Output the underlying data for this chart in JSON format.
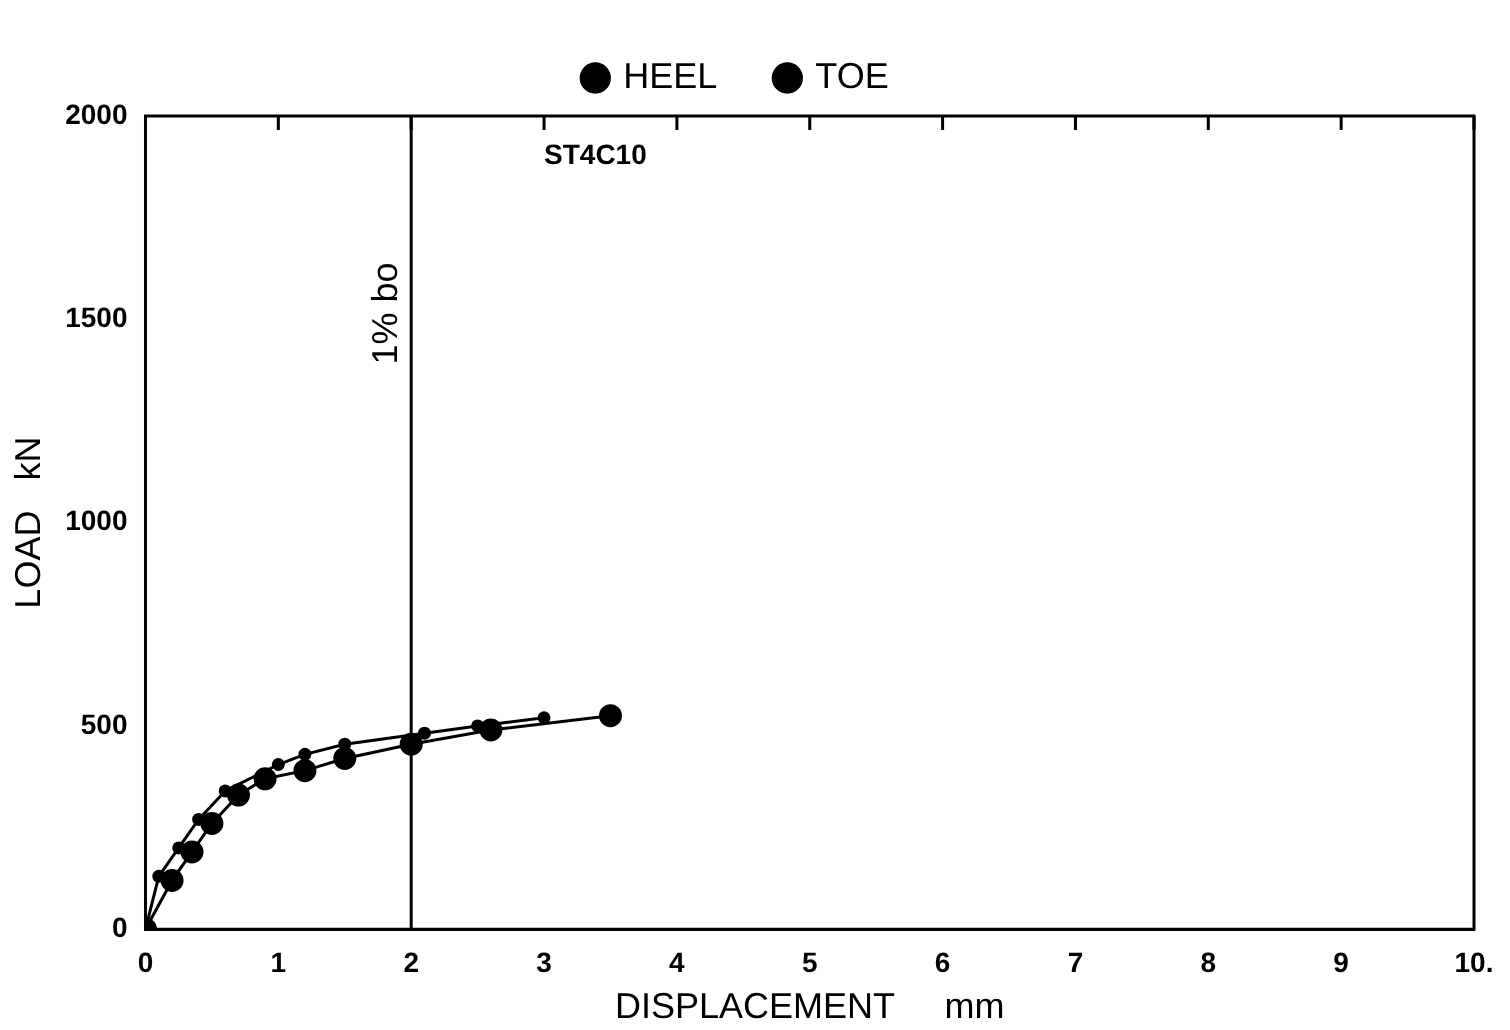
{
  "chart_data": {
    "type": "line",
    "xlabel": "DISPLACEMENT     mm",
    "ylabel": "LOAD   kN",
    "xlim": [
      0,
      10
    ],
    "xticks": [
      0,
      1,
      2,
      3,
      4,
      5,
      6,
      7,
      8,
      9,
      {
        "value": 10,
        "label": "10."
      }
    ],
    "ylim": [
      0,
      2000
    ],
    "yticks": [
      0,
      500,
      1000,
      1500,
      2000
    ],
    "grid": false,
    "legend": "top",
    "marker": "circle",
    "line_style": "solid",
    "series": [
      {
        "name": "HEEL",
        "color": "#000000",
        "x": [
          0,
          0.2,
          0.35,
          0.5,
          0.7,
          0.9,
          1.2,
          1.5,
          2.0,
          2.6,
          3.5
        ],
        "values": [
          0,
          120,
          190,
          260,
          330,
          370,
          390,
          420,
          455,
          490,
          525
        ]
      },
      {
        "name": "TOE",
        "color": "#000000",
        "x": [
          0,
          0.1,
          0.25,
          0.4,
          0.6,
          1.0,
          1.2,
          1.5,
          2.1,
          2.5,
          3.0
        ],
        "values": [
          0,
          130,
          200,
          270,
          340,
          405,
          430,
          455,
          482,
          500,
          520
        ]
      }
    ],
    "ref_lines": [
      {
        "axis": "x",
        "value": 2,
        "label": "1% bo"
      }
    ],
    "annotations": [
      "ST4C10"
    ]
  }
}
